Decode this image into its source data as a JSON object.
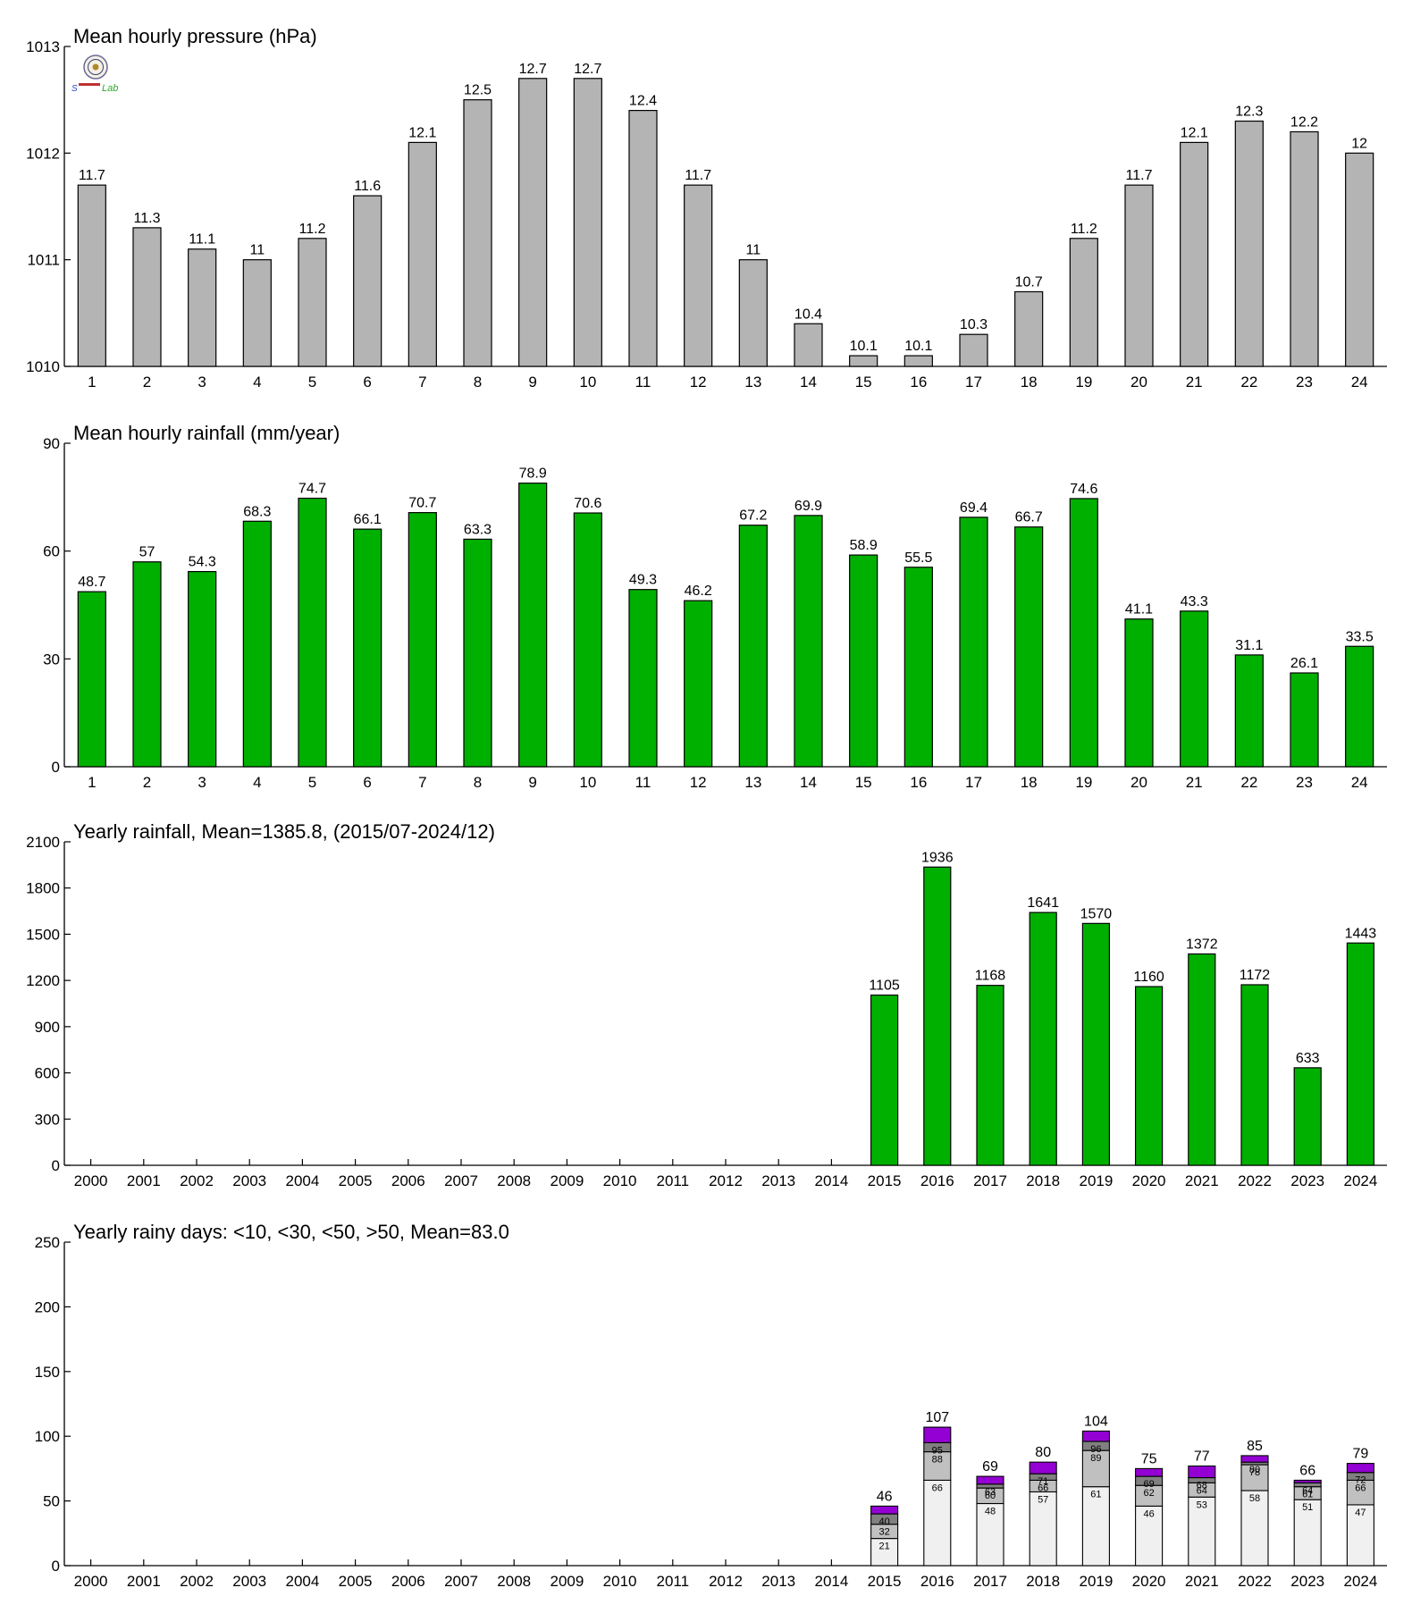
{
  "colors": {
    "pressure_bar": "#b4b4b4",
    "rain_bar": "#00b000",
    "days_lt10": "#f0f0f0",
    "days_lt30": "#c0c0c0",
    "days_lt50": "#808080",
    "days_gt50": "#9400d3"
  },
  "logo": {
    "icon": "seal-logo-icon",
    "text": "Lab"
  },
  "chart_data": [
    {
      "type": "bar",
      "title": "Mean hourly pressure (hPa)",
      "categories": [
        "1",
        "2",
        "3",
        "4",
        "5",
        "6",
        "7",
        "8",
        "9",
        "10",
        "11",
        "12",
        "13",
        "14",
        "15",
        "16",
        "17",
        "18",
        "19",
        "20",
        "21",
        "22",
        "23",
        "24"
      ],
      "values": [
        1011.7,
        1011.3,
        1011.1,
        1011.0,
        1011.2,
        1011.6,
        1012.1,
        1012.5,
        1012.7,
        1012.7,
        1012.4,
        1011.7,
        1011.0,
        1010.4,
        1010.1,
        1010.1,
        1010.3,
        1010.7,
        1011.2,
        1011.7,
        1012.1,
        1012.3,
        1012.2,
        1012.0
      ],
      "value_labels": [
        "11.7",
        "11.3",
        "11.1",
        "11",
        "11.2",
        "11.6",
        "12.1",
        "12.5",
        "12.7",
        "12.7",
        "12.4",
        "11.7",
        "11",
        "10.4",
        "10.1",
        "10.1",
        "10.3",
        "10.7",
        "11.2",
        "11.7",
        "12.1",
        "12.3",
        "12.2",
        "12"
      ],
      "ylim": [
        1010,
        1013
      ],
      "yticks": [
        "1010",
        "1011",
        "1012",
        "1013"
      ],
      "grid": false
    },
    {
      "type": "bar",
      "title": "Mean hourly rainfall (mm/year)",
      "categories": [
        "1",
        "2",
        "3",
        "4",
        "5",
        "6",
        "7",
        "8",
        "9",
        "10",
        "11",
        "12",
        "13",
        "14",
        "15",
        "16",
        "17",
        "18",
        "19",
        "20",
        "21",
        "22",
        "23",
        "24"
      ],
      "values": [
        48.7,
        57,
        54.3,
        68.3,
        74.7,
        66.1,
        70.7,
        63.3,
        78.9,
        70.6,
        49.3,
        46.2,
        67.2,
        69.9,
        58.9,
        55.5,
        69.4,
        66.7,
        74.6,
        41.1,
        43.3,
        31.1,
        26.1,
        33.5
      ],
      "value_labels": [
        "48.7",
        "57",
        "54.3",
        "68.3",
        "74.7",
        "66.1",
        "70.7",
        "63.3",
        "78.9",
        "70.6",
        "49.3",
        "46.2",
        "67.2",
        "69.9",
        "58.9",
        "55.5",
        "69.4",
        "66.7",
        "74.6",
        "41.1",
        "43.3",
        "31.1",
        "26.1",
        "33.5"
      ],
      "ylim": [
        0,
        90
      ],
      "yticks": [
        "0",
        "30",
        "60",
        "90"
      ],
      "grid": false
    },
    {
      "type": "bar",
      "title": "Yearly rainfall, Mean=1385.8, (2015/07-2024/12)",
      "categories": [
        "2000",
        "2001",
        "2002",
        "2003",
        "2004",
        "2005",
        "2006",
        "2007",
        "2008",
        "2009",
        "2010",
        "2011",
        "2012",
        "2013",
        "2014",
        "2015",
        "2016",
        "2017",
        "2018",
        "2019",
        "2020",
        "2021",
        "2022",
        "2023",
        "2024"
      ],
      "values": [
        null,
        null,
        null,
        null,
        null,
        null,
        null,
        null,
        null,
        null,
        null,
        null,
        null,
        null,
        null,
        1105,
        1936,
        1168,
        1641,
        1570,
        1160,
        1372,
        1172,
        633,
        1443
      ],
      "value_labels": [
        "",
        "",
        "",
        "",
        "",
        "",
        "",
        "",
        "",
        "",
        "",
        "",
        "",
        "",
        "",
        "1105",
        "1936",
        "1168",
        "1641",
        "1570",
        "1160",
        "1372",
        "1172",
        "633",
        "1443"
      ],
      "ylim": [
        0,
        2100
      ],
      "yticks": [
        "0",
        "300",
        "600",
        "900",
        "1200",
        "1500",
        "1800",
        "2100"
      ],
      "grid": false
    },
    {
      "type": "bar",
      "stacked": true,
      "title": "Yearly rainy days: <10, <30, <50, >50, Mean=83.0",
      "categories": [
        "2000",
        "2001",
        "2002",
        "2003",
        "2004",
        "2005",
        "2006",
        "2007",
        "2008",
        "2009",
        "2010",
        "2011",
        "2012",
        "2013",
        "2014",
        "2015",
        "2016",
        "2017",
        "2018",
        "2019",
        "2020",
        "2021",
        "2022",
        "2023",
        "2024"
      ],
      "cumulative": [
        [],
        [],
        [],
        [],
        [],
        [],
        [],
        [],
        [],
        [],
        [],
        [],
        [],
        [],
        [],
        [
          21,
          32,
          40,
          46
        ],
        [
          66,
          88,
          95,
          107
        ],
        [
          48,
          60,
          63,
          69
        ],
        [
          57,
          66,
          71,
          80
        ],
        [
          61,
          89,
          96,
          104
        ],
        [
          46,
          62,
          69,
          75
        ],
        [
          53,
          64,
          68,
          77
        ],
        [
          58,
          78,
          80,
          85
        ],
        [
          51,
          61,
          64,
          66
        ],
        [
          47,
          66,
          72,
          79
        ]
      ],
      "segment_labels": [
        [],
        [],
        [],
        [],
        [],
        [],
        [],
        [],
        [],
        [],
        [],
        [],
        [],
        [],
        [],
        [
          "21",
          "32",
          "40"
        ],
        [
          "66",
          "88",
          "95"
        ],
        [
          "48",
          "60",
          "63"
        ],
        [
          "57",
          "66",
          "71"
        ],
        [
          "61",
          "89",
          "96"
        ],
        [
          "46",
          "62",
          "69"
        ],
        [
          "53",
          "64",
          "68"
        ],
        [
          "58",
          "78",
          "80"
        ],
        [
          "51",
          "61",
          "64"
        ],
        [
          "47",
          "66",
          "72"
        ]
      ],
      "total_labels": [
        "",
        "",
        "",
        "",
        "",
        "",
        "",
        "",
        "",
        "",
        "",
        "",
        "",
        "",
        "",
        "46",
        "107",
        "69",
        "80",
        "104",
        "75",
        "77",
        "85",
        "66",
        "79"
      ],
      "ylim": [
        0,
        250
      ],
      "yticks": [
        "0",
        "50",
        "100",
        "150",
        "200",
        "250"
      ],
      "grid": false
    }
  ]
}
